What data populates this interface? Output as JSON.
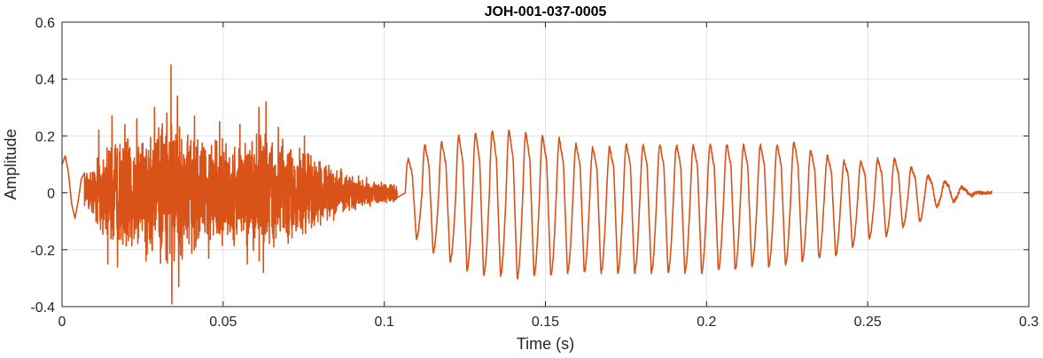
{
  "chart_data": {
    "type": "line",
    "title": "JOH-001-037-0005",
    "xlabel": "Time (s)",
    "ylabel": "Amplitude",
    "xlim": [
      0,
      0.3
    ],
    "ylim": [
      -0.4,
      0.6
    ],
    "x_ticks": [
      0,
      0.05,
      0.1,
      0.15,
      0.2,
      0.25,
      0.3
    ],
    "x_tick_labels": [
      "0",
      "0.05",
      "0.1",
      "0.15",
      "0.2",
      "0.25",
      "0.3"
    ],
    "y_ticks": [
      -0.4,
      -0.2,
      0,
      0.2,
      0.4,
      0.6
    ],
    "y_tick_labels": [
      "-0.4",
      "-0.2",
      "0",
      "0.2",
      "0.4",
      "0.6"
    ],
    "grid": true,
    "box": true,
    "series": [
      {
        "color": "#D95319",
        "noise_segment": {
          "t_start": 0.007,
          "t_end": 0.104,
          "envelope_t": [
            0.007,
            0.015,
            0.03,
            0.034,
            0.045,
            0.055,
            0.062,
            0.075,
            0.09,
            0.104
          ],
          "envelope": [
            0.06,
            0.2,
            0.26,
            0.28,
            0.2,
            0.2,
            0.25,
            0.16,
            0.07,
            0.03
          ],
          "spikes": [
            {
              "t": 0.0114,
              "v": 0.22
            },
            {
              "t": 0.0142,
              "v": -0.25
            },
            {
              "t": 0.0155,
              "v": 0.27
            },
            {
              "t": 0.0172,
              "v": -0.26
            },
            {
              "t": 0.0195,
              "v": 0.24
            },
            {
              "t": 0.0232,
              "v": 0.26
            },
            {
              "t": 0.0261,
              "v": -0.24
            },
            {
              "t": 0.0287,
              "v": 0.3
            },
            {
              "t": 0.0325,
              "v": 0.28
            },
            {
              "t": 0.0338,
              "v": 0.45
            },
            {
              "t": 0.0341,
              "v": -0.39
            },
            {
              "t": 0.0358,
              "v": 0.34
            },
            {
              "t": 0.0362,
              "v": -0.33
            },
            {
              "t": 0.0411,
              "v": 0.27
            },
            {
              "t": 0.0455,
              "v": -0.23
            },
            {
              "t": 0.0489,
              "v": 0.25
            },
            {
              "t": 0.0552,
              "v": 0.24
            },
            {
              "t": 0.0575,
              "v": -0.25
            },
            {
              "t": 0.0611,
              "v": 0.3
            },
            {
              "t": 0.0625,
              "v": -0.28
            },
            {
              "t": 0.0633,
              "v": 0.32
            },
            {
              "t": 0.0671,
              "v": 0.23
            },
            {
              "t": 0.0752,
              "v": 0.2
            }
          ]
        },
        "onset": [
          {
            "t": 0.0,
            "v": 0.1
          },
          {
            "t": 0.001,
            "v": 0.13
          },
          {
            "t": 0.002,
            "v": 0.07
          },
          {
            "t": 0.003,
            "v": -0.04
          },
          {
            "t": 0.004,
            "v": -0.09
          },
          {
            "t": 0.005,
            "v": -0.03
          },
          {
            "t": 0.006,
            "v": 0.05
          },
          {
            "t": 0.007,
            "v": 0.07
          }
        ],
        "periodic_cycles": [
          {
            "t": 0.1065,
            "max": 0.12,
            "min": -0.16
          },
          {
            "t": 0.1117,
            "max": 0.17,
            "min": -0.21
          },
          {
            "t": 0.1169,
            "max": 0.18,
            "min": -0.24
          },
          {
            "t": 0.1222,
            "max": 0.2,
            "min": -0.27
          },
          {
            "t": 0.1274,
            "max": 0.21,
            "min": -0.29
          },
          {
            "t": 0.1326,
            "max": 0.22,
            "min": -0.29
          },
          {
            "t": 0.1378,
            "max": 0.22,
            "min": -0.3
          },
          {
            "t": 0.143,
            "max": 0.21,
            "min": -0.29
          },
          {
            "t": 0.1482,
            "max": 0.2,
            "min": -0.29
          },
          {
            "t": 0.1534,
            "max": 0.19,
            "min": -0.28
          },
          {
            "t": 0.1586,
            "max": 0.17,
            "min": -0.28
          },
          {
            "t": 0.1638,
            "max": 0.16,
            "min": -0.28
          },
          {
            "t": 0.169,
            "max": 0.16,
            "min": -0.28
          },
          {
            "t": 0.1742,
            "max": 0.17,
            "min": -0.28
          },
          {
            "t": 0.1794,
            "max": 0.17,
            "min": -0.28
          },
          {
            "t": 0.1846,
            "max": 0.17,
            "min": -0.28
          },
          {
            "t": 0.1898,
            "max": 0.17,
            "min": -0.28
          },
          {
            "t": 0.195,
            "max": 0.17,
            "min": -0.28
          },
          {
            "t": 0.2002,
            "max": 0.17,
            "min": -0.27
          },
          {
            "t": 0.2054,
            "max": 0.17,
            "min": -0.27
          },
          {
            "t": 0.2106,
            "max": 0.17,
            "min": -0.26
          },
          {
            "t": 0.2158,
            "max": 0.17,
            "min": -0.26
          },
          {
            "t": 0.221,
            "max": 0.17,
            "min": -0.25
          },
          {
            "t": 0.2262,
            "max": 0.18,
            "min": -0.24
          },
          {
            "t": 0.2314,
            "max": 0.15,
            "min": -0.23
          },
          {
            "t": 0.2366,
            "max": 0.13,
            "min": -0.22
          },
          {
            "t": 0.2418,
            "max": 0.11,
            "min": -0.19
          },
          {
            "t": 0.247,
            "max": 0.11,
            "min": -0.16
          },
          {
            "t": 0.2522,
            "max": 0.12,
            "min": -0.15
          },
          {
            "t": 0.2574,
            "max": 0.12,
            "min": -0.12
          },
          {
            "t": 0.2626,
            "max": 0.09,
            "min": -0.1
          },
          {
            "t": 0.2678,
            "max": 0.06,
            "min": -0.05
          },
          {
            "t": 0.273,
            "max": 0.04,
            "min": -0.03
          },
          {
            "t": 0.2782,
            "max": 0.02,
            "min": -0.01
          },
          {
            "t": 0.2834,
            "max": 0.0,
            "min": 0.0
          }
        ]
      }
    ]
  }
}
